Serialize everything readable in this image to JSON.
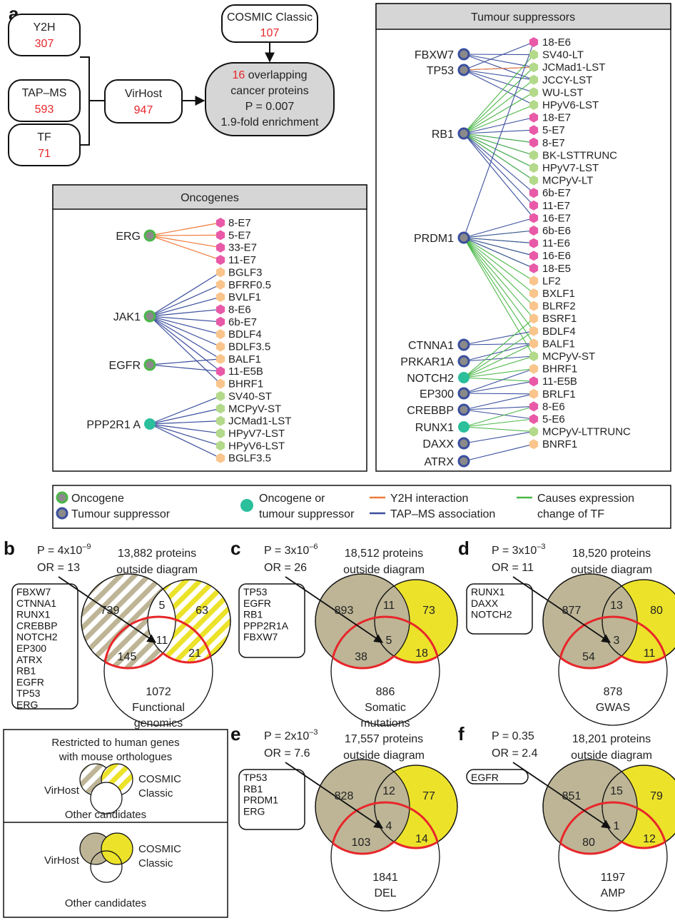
{
  "panel_a": {
    "letter": "a",
    "sources": [
      {
        "name": "Y2H",
        "count": "307"
      },
      {
        "name": "TAP–MS",
        "count": "593"
      },
      {
        "name": "TF",
        "count": "71"
      }
    ],
    "virhost": {
      "name": "VirHost",
      "count": "947"
    },
    "cosmic": {
      "name": "COSMIC Classic",
      "count": "107"
    },
    "result": {
      "count": "16",
      "line1_rest": " overlapping",
      "line2": "cancer proteins",
      "line3": "P = 0.007",
      "line4": "1.9-fold enrichment"
    },
    "oncogenes": {
      "title": "Oncogenes",
      "genes": [
        "ERG",
        "JAK1",
        "EGFR",
        "PPP2R1 A"
      ],
      "viral": [
        "8-E7",
        "5-E7",
        "33-E7",
        "11-E7",
        "BGLF3",
        "BFRF0.5",
        "BVLF1",
        "8-E6",
        "6b-E7",
        "BDLF4",
        "BDLF3.5",
        "BALF1",
        "11-E5B",
        "BHRF1",
        "SV40-ST",
        "MCPyV-ST",
        "JCMad1-LST",
        "HPyV7-LST",
        "HPyV6-LST",
        "BGLF3.5"
      ]
    },
    "suppressors": {
      "title": "Tumour suppressors",
      "genes": [
        "FBXW7",
        "TP53",
        "RB1",
        "PRDM1",
        "CTNNA1",
        "PRKAR1A",
        "NOTCH2",
        "EP300",
        "CREBBP",
        "RUNX1",
        "DAXX",
        "ATRX"
      ],
      "viral": [
        "18-E6",
        "SV40-LT",
        "JCMad1-LST",
        "JCCY-LST",
        "WU-LST",
        "HPyV6-LST",
        "18-E7",
        "5-E7",
        "8-E7",
        "BK-LSTTRUNC",
        "HPyV7-LST",
        "MCPyV-LT",
        "6b-E7",
        "11-E7",
        "16-E7",
        "6b-E6",
        "11-E6",
        "16-E6",
        "18-E5",
        "LF2",
        "BXLF1",
        "BLRF2",
        "BSRF1",
        "BDLF4",
        "BALF1",
        "MCPyV-ST",
        "BHRF1",
        "11-E5B",
        "BRLF1",
        "8-E6",
        "5-E6",
        "MCPyV-LTTRUNC",
        "BNRF1"
      ]
    },
    "legend": {
      "oncogene": "Oncogene",
      "suppressor": "Tumour suppressor",
      "either_1": "Oncogene or",
      "either_2": "tumour suppressor",
      "y2h": "Y2H interaction",
      "tapms": "TAP–MS association",
      "tf_1": "Causes expression",
      "tf_2": "change of TF"
    },
    "colors": {
      "orange": "#f07a3a",
      "blue": "#3b4f9e",
      "green": "#4cb848",
      "pink": "#e85aa8",
      "lightgreen": "#b3d98a",
      "peach": "#f9c58c",
      "teal": "#2bbf9c",
      "gray": "#8a8a8a"
    }
  },
  "venns": [
    {
      "letter": "b",
      "p": "P = 4x10",
      "pexp": "–9",
      "or": "OR = 13",
      "outside1": "13,882 proteins",
      "outside2": "outside diagram",
      "genes": [
        "FBXW7",
        "CTNNA1",
        "RUNX1",
        "CREBBP",
        "NOTCH2",
        "EP300",
        "ATRX",
        "RB1",
        "EGFR",
        "TP53",
        "ERG"
      ],
      "n_left": "739",
      "n_top": "5",
      "n_right": "63",
      "n_center": "11",
      "n_bl": "145",
      "n_br": "21",
      "n_bottom": "1072",
      "label1": "Functional",
      "label2": "genomics"
    },
    {
      "letter": "c",
      "p": "P = 3x10",
      "pexp": "–6",
      "or": "OR = 26",
      "outside1": "18,512 proteins",
      "outside2": "outside diagram",
      "genes": [
        "TP53",
        "EGFR",
        "RB1",
        "PPP2R1A",
        "FBXW7"
      ],
      "n_left": "893",
      "n_top": "11",
      "n_right": "73",
      "n_center": "5",
      "n_bl": "38",
      "n_br": "18",
      "n_bottom": "886",
      "label1": "Somatic",
      "label2": "mutations"
    },
    {
      "letter": "d",
      "p": "P = 3x10",
      "pexp": "–3",
      "or": "OR = 11",
      "outside1": "18,520 proteins",
      "outside2": "outside diagram",
      "genes": [
        "RUNX1",
        "DAXX",
        "NOTCH2"
      ],
      "n_left": "877",
      "n_top": "13",
      "n_right": "80",
      "n_center": "3",
      "n_bl": "54",
      "n_br": "11",
      "n_bottom": "878",
      "label1": "GWAS",
      "label2": ""
    },
    {
      "letter": "e",
      "p": "P = 2x10",
      "pexp": "–3",
      "or": "OR = 7.6",
      "outside1": "17,557 proteins",
      "outside2": "outside diagram",
      "genes": [
        "TP53",
        "RB1",
        "PRDM1",
        "ERG"
      ],
      "n_left": "828",
      "n_top": "12",
      "n_right": "77",
      "n_center": "4",
      "n_bl": "103",
      "n_br": "14",
      "n_bottom": "1841",
      "label1": "DEL",
      "label2": ""
    },
    {
      "letter": "f",
      "p": "P = 0.35",
      "pexp": "",
      "or": "OR = 2.4",
      "outside1": "18,201 proteins",
      "outside2": "outside diagram",
      "genes": [
        "EGFR"
      ],
      "n_left": "851",
      "n_top": "15",
      "n_right": "79",
      "n_center": "1",
      "n_bl": "80",
      "n_br": "12",
      "n_bottom": "1197",
      "label1": "AMP",
      "label2": ""
    }
  ],
  "key": {
    "restricted_1": "Restricted to human genes",
    "restricted_2": "with mouse orthologues",
    "virhost": "VirHost",
    "cosmic_1": "COSMIC",
    "cosmic_2": "Classic",
    "other": "Other candidates"
  }
}
